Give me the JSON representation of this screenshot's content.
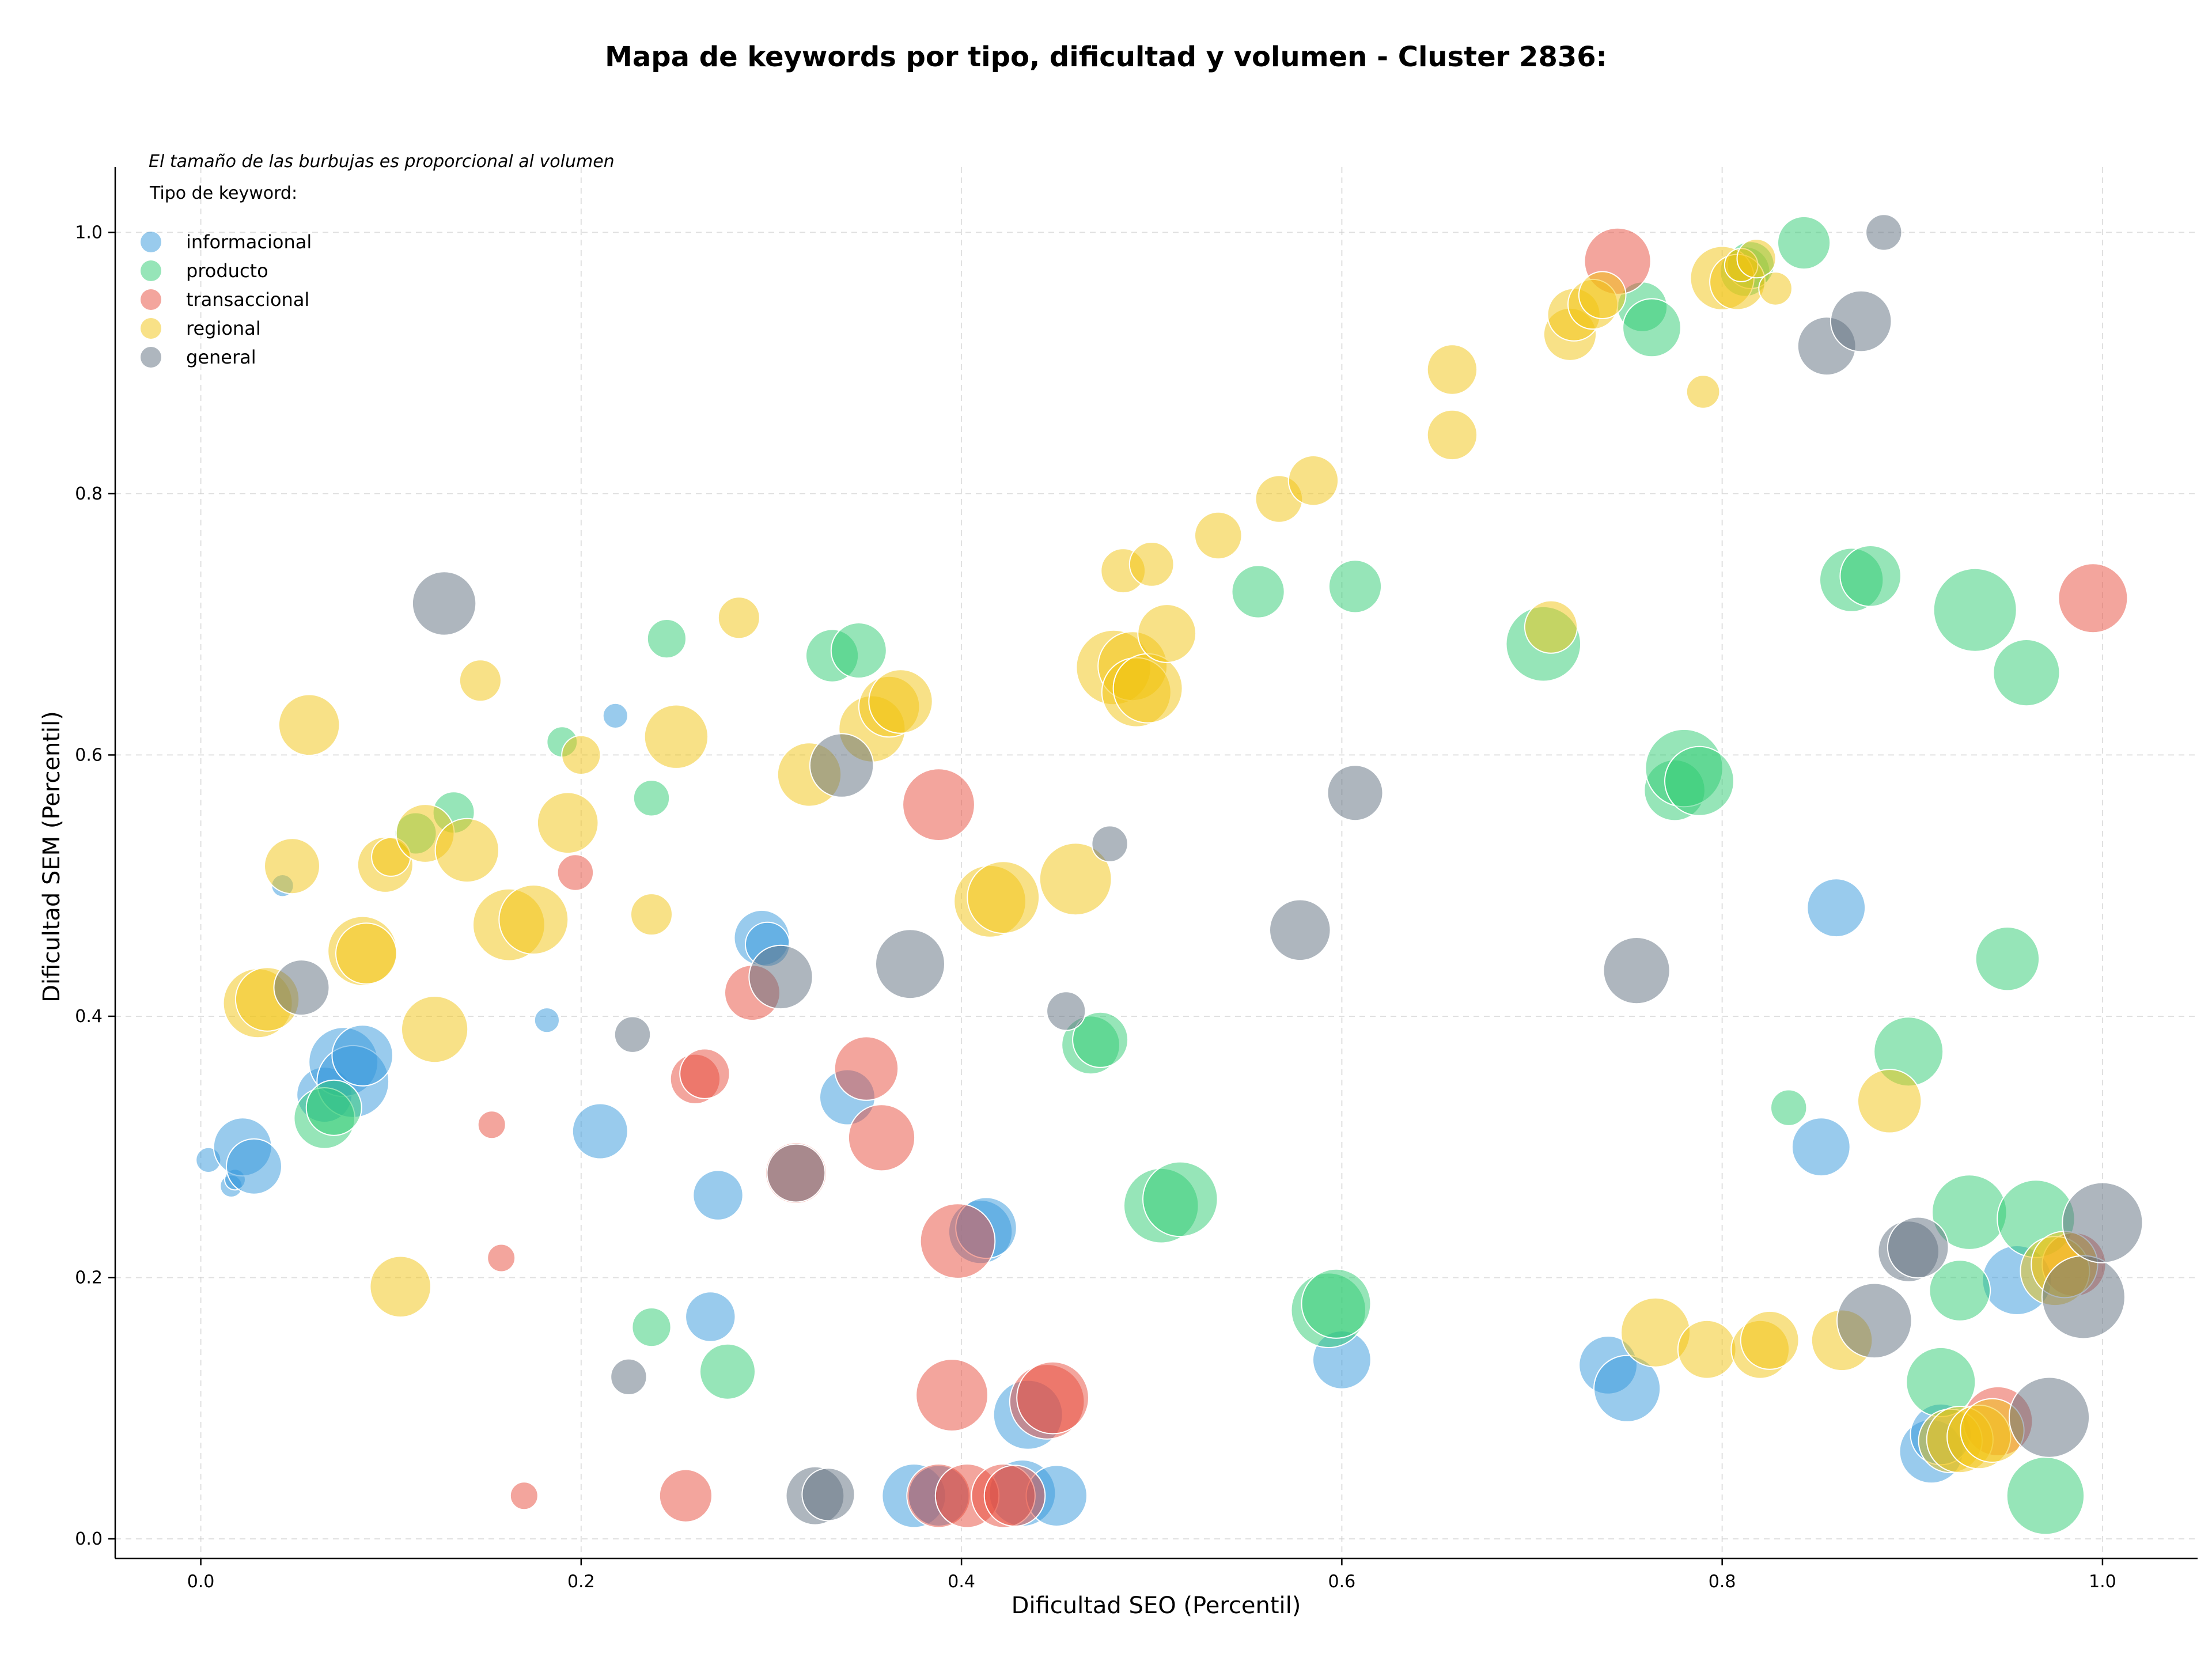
{
  "chart_data": {
    "type": "scatter",
    "title": "Mapa de keywords por tipo, dificultad y volumen - Cluster 2836:",
    "xlabel": "Dificultad SEO (Percentil)",
    "ylabel": "Dificultad SEM (Percentil)",
    "annotation": "El tamaño de las burbujas es proporcional al volumen",
    "legend_title": "Tipo de keyword:",
    "legend_position": "top-left",
    "xlim": [
      -0.045,
      1.05
    ],
    "ylim": [
      -0.015,
      1.05
    ],
    "x_ticks": [
      "0.0",
      "0.2",
      "0.4",
      "0.6",
      "0.8",
      "1.0"
    ],
    "y_ticks": [
      "0.0",
      "0.2",
      "0.4",
      "0.6",
      "0.8",
      "1.0"
    ],
    "grid": true,
    "series": [
      {
        "name": "informacional",
        "color": "#3498db",
        "points": [
          [
            0.004,
            0.29,
            1.8
          ],
          [
            0.016,
            0.27,
            1.6
          ],
          [
            0.018,
            0.275,
            1.5
          ],
          [
            0.022,
            0.3,
            4.2
          ],
          [
            0.028,
            0.285,
            4.0
          ],
          [
            0.043,
            0.5,
            1.6
          ],
          [
            0.065,
            0.34,
            4.0
          ],
          [
            0.075,
            0.365,
            5.0
          ],
          [
            0.08,
            0.35,
            5.2
          ],
          [
            0.085,
            0.37,
            4.4
          ],
          [
            0.182,
            0.397,
            1.8
          ],
          [
            0.21,
            0.312,
            4.0
          ],
          [
            0.218,
            0.63,
            1.8
          ],
          [
            0.272,
            0.263,
            3.6
          ],
          [
            0.268,
            0.17,
            3.6
          ],
          [
            0.295,
            0.46,
            4.0
          ],
          [
            0.298,
            0.455,
            3.2
          ],
          [
            0.34,
            0.338,
            4.0
          ],
          [
            0.375,
            0.033,
            4.6
          ],
          [
            0.388,
            0.033,
            4.4
          ],
          [
            0.41,
            0.235,
            4.6
          ],
          [
            0.413,
            0.238,
            4.4
          ],
          [
            0.432,
            0.035,
            4.8
          ],
          [
            0.435,
            0.095,
            5.0
          ],
          [
            0.45,
            0.033,
            4.4
          ],
          [
            0.6,
            0.137,
            4.2
          ],
          [
            0.74,
            0.133,
            4.2
          ],
          [
            0.75,
            0.115,
            4.8
          ],
          [
            0.86,
            0.483,
            4.2
          ],
          [
            0.852,
            0.3,
            4.2
          ],
          [
            0.91,
            0.067,
            4.6
          ],
          [
            0.915,
            0.08,
            4.4
          ],
          [
            0.955,
            0.198,
            5.0
          ]
        ]
      },
      {
        "name": "producto",
        "color": "#2ecc71",
        "points": [
          [
            0.065,
            0.322,
            4.4
          ],
          [
            0.07,
            0.33,
            4.0
          ],
          [
            0.113,
            0.54,
            3.0
          ],
          [
            0.133,
            0.556,
            3.0
          ],
          [
            0.19,
            0.61,
            2.2
          ],
          [
            0.237,
            0.567,
            2.6
          ],
          [
            0.245,
            0.689,
            2.8
          ],
          [
            0.237,
            0.162,
            2.8
          ],
          [
            0.277,
            0.128,
            4.0
          ],
          [
            0.332,
            0.676,
            3.8
          ],
          [
            0.346,
            0.68,
            4.0
          ],
          [
            0.468,
            0.378,
            4.2
          ],
          [
            0.473,
            0.382,
            4.0
          ],
          [
            0.505,
            0.255,
            5.4
          ],
          [
            0.515,
            0.26,
            5.4
          ],
          [
            0.556,
            0.725,
            3.8
          ],
          [
            0.593,
            0.175,
            5.4
          ],
          [
            0.597,
            0.18,
            5.0
          ],
          [
            0.607,
            0.729,
            3.8
          ],
          [
            0.706,
            0.685,
            5.4
          ],
          [
            0.758,
            0.943,
            3.6
          ],
          [
            0.763,
            0.927,
            4.2
          ],
          [
            0.775,
            0.573,
            4.4
          ],
          [
            0.78,
            0.59,
            5.6
          ],
          [
            0.788,
            0.58,
            5.0
          ],
          [
            0.812,
            0.97,
            3.6
          ],
          [
            0.815,
            0.975,
            3.4
          ],
          [
            0.835,
            0.33,
            2.6
          ],
          [
            0.843,
            0.992,
            3.8
          ],
          [
            0.868,
            0.734,
            4.6
          ],
          [
            0.878,
            0.737,
            4.4
          ],
          [
            0.898,
            0.373,
            5.0
          ],
          [
            0.915,
            0.12,
            5.0
          ],
          [
            0.925,
            0.19,
            4.4
          ],
          [
            0.93,
            0.25,
            5.4
          ],
          [
            0.933,
            0.711,
            6.0
          ],
          [
            0.95,
            0.444,
            4.6
          ],
          [
            0.96,
            0.663,
            4.8
          ],
          [
            0.965,
            0.245,
            5.6
          ],
          [
            0.97,
            0.033,
            5.6
          ]
        ]
      },
      {
        "name": "transaccional",
        "color": "#e74c3c",
        "points": [
          [
            0.153,
            0.317,
            2.0
          ],
          [
            0.158,
            0.215,
            2.0
          ],
          [
            0.17,
            0.033,
            2.0
          ],
          [
            0.197,
            0.51,
            2.6
          ],
          [
            0.255,
            0.033,
            3.8
          ],
          [
            0.26,
            0.352,
            3.6
          ],
          [
            0.265,
            0.356,
            3.6
          ],
          [
            0.29,
            0.418,
            4.0
          ],
          [
            0.313,
            0.28,
            4.4
          ],
          [
            0.35,
            0.36,
            4.6
          ],
          [
            0.358,
            0.307,
            4.8
          ],
          [
            0.388,
            0.033,
            4.6
          ],
          [
            0.388,
            0.562,
            5.2
          ],
          [
            0.395,
            0.11,
            5.2
          ],
          [
            0.398,
            0.228,
            5.4
          ],
          [
            0.403,
            0.033,
            4.6
          ],
          [
            0.422,
            0.033,
            4.6
          ],
          [
            0.428,
            0.033,
            4.4
          ],
          [
            0.445,
            0.105,
            5.4
          ],
          [
            0.448,
            0.108,
            5.2
          ],
          [
            0.745,
            0.978,
            4.8
          ],
          [
            0.945,
            0.09,
            5.0
          ],
          [
            0.985,
            0.21,
            4.6
          ],
          [
            0.995,
            0.72,
            5.0
          ]
        ]
      },
      {
        "name": "regional",
        "color": "#f1c40f",
        "points": [
          [
            0.03,
            0.41,
            5.0
          ],
          [
            0.035,
            0.413,
            4.6
          ],
          [
            0.048,
            0.515,
            4.0
          ],
          [
            0.057,
            0.623,
            4.4
          ],
          [
            0.085,
            0.45,
            5.0
          ],
          [
            0.087,
            0.448,
            4.4
          ],
          [
            0.097,
            0.516,
            4.0
          ],
          [
            0.1,
            0.522,
            2.8
          ],
          [
            0.105,
            0.193,
            4.4
          ],
          [
            0.118,
            0.54,
            4.2
          ],
          [
            0.123,
            0.39,
            4.8
          ],
          [
            0.14,
            0.527,
            4.6
          ],
          [
            0.147,
            0.657,
            3.0
          ],
          [
            0.162,
            0.47,
            5.2
          ],
          [
            0.175,
            0.474,
            5.0
          ],
          [
            0.193,
            0.548,
            4.4
          ],
          [
            0.2,
            0.6,
            2.8
          ],
          [
            0.237,
            0.478,
            3.0
          ],
          [
            0.25,
            0.614,
            4.6
          ],
          [
            0.283,
            0.705,
            3.0
          ],
          [
            0.32,
            0.585,
            4.6
          ],
          [
            0.353,
            0.62,
            4.8
          ],
          [
            0.362,
            0.637,
            4.4
          ],
          [
            0.368,
            0.641,
            4.6
          ],
          [
            0.415,
            0.488,
            5.2
          ],
          [
            0.422,
            0.491,
            5.2
          ],
          [
            0.46,
            0.505,
            5.2
          ],
          [
            0.48,
            0.667,
            5.4
          ],
          [
            0.49,
            0.668,
            5.0
          ],
          [
            0.492,
            0.648,
            5.0
          ],
          [
            0.498,
            0.651,
            5.0
          ],
          [
            0.485,
            0.741,
            3.2
          ],
          [
            0.5,
            0.746,
            3.2
          ],
          [
            0.508,
            0.693,
            4.2
          ],
          [
            0.535,
            0.768,
            3.4
          ],
          [
            0.567,
            0.796,
            3.4
          ],
          [
            0.585,
            0.81,
            3.6
          ],
          [
            0.658,
            0.845,
            3.6
          ],
          [
            0.658,
            0.895,
            3.6
          ],
          [
            0.71,
            0.698,
            3.8
          ],
          [
            0.72,
            0.922,
            3.8
          ],
          [
            0.722,
            0.937,
            3.8
          ],
          [
            0.732,
            0.945,
            3.6
          ],
          [
            0.737,
            0.952,
            3.4
          ],
          [
            0.765,
            0.158,
            5.0
          ],
          [
            0.79,
            0.878,
            2.4
          ],
          [
            0.792,
            0.145,
            4.2
          ],
          [
            0.8,
            0.965,
            4.6
          ],
          [
            0.808,
            0.962,
            4.0
          ],
          [
            0.81,
            0.975,
            2.4
          ],
          [
            0.818,
            0.98,
            2.8
          ],
          [
            0.82,
            0.145,
            4.2
          ],
          [
            0.825,
            0.152,
            4.2
          ],
          [
            0.828,
            0.957,
            2.4
          ],
          [
            0.863,
            0.152,
            4.4
          ],
          [
            0.888,
            0.335,
            4.6
          ],
          [
            0.92,
            0.075,
            4.6
          ],
          [
            0.925,
            0.076,
            4.8
          ],
          [
            0.935,
            0.078,
            4.6
          ],
          [
            0.942,
            0.083,
            4.6
          ],
          [
            0.975,
            0.205,
            5.0
          ],
          [
            0.98,
            0.21,
            4.8
          ]
        ]
      },
      {
        "name": "general",
        "color": "#5d6d7e",
        "points": [
          [
            0.053,
            0.422,
            4.0
          ],
          [
            0.128,
            0.716,
            4.6
          ],
          [
            0.225,
            0.124,
            2.6
          ],
          [
            0.227,
            0.386,
            2.6
          ],
          [
            0.305,
            0.43,
            4.6
          ],
          [
            0.313,
            0.28,
            4.2
          ],
          [
            0.323,
            0.033,
            4.2
          ],
          [
            0.33,
            0.034,
            3.8
          ],
          [
            0.337,
            0.592,
            4.6
          ],
          [
            0.373,
            0.44,
            5.0
          ],
          [
            0.455,
            0.404,
            2.8
          ],
          [
            0.478,
            0.532,
            2.6
          ],
          [
            0.578,
            0.466,
            4.4
          ],
          [
            0.607,
            0.571,
            4.0
          ],
          [
            0.755,
            0.435,
            4.8
          ],
          [
            0.855,
            0.913,
            4.2
          ],
          [
            0.873,
            0.932,
            4.4
          ],
          [
            0.88,
            0.167,
            5.4
          ],
          [
            0.885,
            1.0,
            2.6
          ],
          [
            0.898,
            0.22,
            4.4
          ],
          [
            0.903,
            0.223,
            4.4
          ],
          [
            0.972,
            0.093,
            5.8
          ],
          [
            0.99,
            0.185,
            6.0
          ],
          [
            1.0,
            0.242,
            5.8
          ]
        ]
      }
    ]
  }
}
